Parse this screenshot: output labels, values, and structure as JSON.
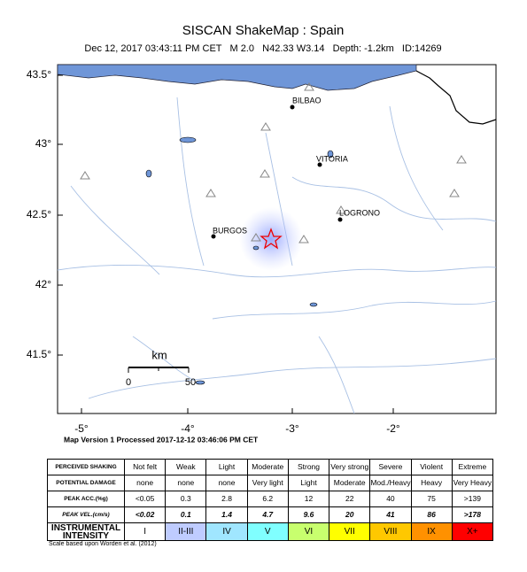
{
  "header": {
    "title": "SISCAN ShakeMap : Spain",
    "subtitle": "Dec 12, 2017 03:43:11 PM CET   M 2.0   N42.33 W3.14   Depth: -1.2km   ID:14269"
  },
  "map": {
    "lat_labels": [
      "43.5°",
      "43°",
      "42.5°",
      "42°",
      "41.5°"
    ],
    "lon_labels": [
      "-5°",
      "-4°",
      "-3°",
      "-2°"
    ],
    "cities": [
      "BILBAO",
      "VITORIA",
      "LOGRONO",
      "BURGOS"
    ],
    "scale": {
      "unit": "km",
      "start": "0",
      "end": "50"
    }
  },
  "footer": {
    "version": "Map Version 1 Processed 2017-12-12 03:46:06 PM CET",
    "note": "Scale based upon Worden et al. (2012)"
  },
  "table": {
    "rows": [
      [
        "PERCEIVED SHAKING",
        "Not felt",
        "Weak",
        "Light",
        "Moderate",
        "Strong",
        "Very strong",
        "Severe",
        "Violent",
        "Extreme"
      ],
      [
        "POTENTIAL DAMAGE",
        "none",
        "none",
        "none",
        "Very light",
        "Light",
        "Moderate",
        "Mod./Heavy",
        "Heavy",
        "Very Heavy"
      ],
      [
        "PEAK ACC.(%g)",
        "<0.05",
        "0.3",
        "2.8",
        "6.2",
        "12",
        "22",
        "40",
        "75",
        ">139"
      ],
      [
        "PEAK VEL.(cm/s)",
        "<0.02",
        "0.1",
        "1.4",
        "4.7",
        "9.6",
        "20",
        "41",
        "86",
        ">178"
      ],
      [
        "INSTRUMENTAL INTENSITY",
        "I",
        "II-III",
        "IV",
        "V",
        "VI",
        "VII",
        "VIII",
        "IX",
        "X+"
      ]
    ]
  }
}
